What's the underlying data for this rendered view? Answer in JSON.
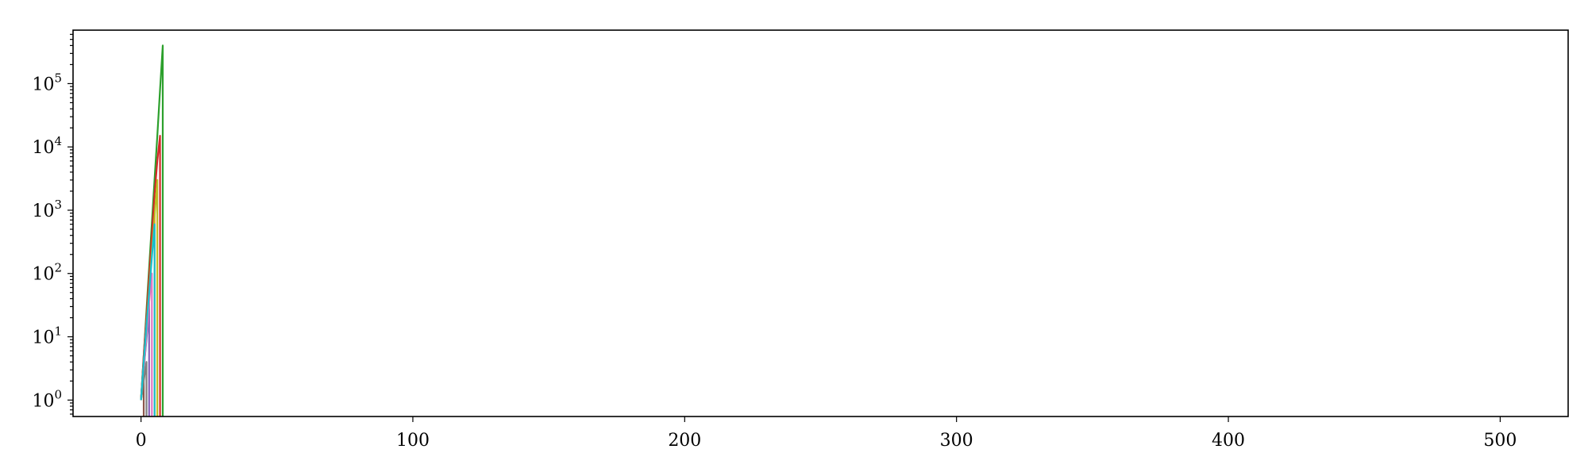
{
  "chart_data": {
    "type": "line",
    "title": "",
    "xlabel": "",
    "ylabel": "",
    "xlim": [
      -25,
      525
    ],
    "ylim": [
      0.55,
      700000
    ],
    "yscale": "log",
    "grid": false,
    "legend": "none",
    "x_ticks": [
      0,
      100,
      200,
      300,
      400,
      500
    ],
    "x_tick_labels": [
      "0",
      "100",
      "200",
      "300",
      "400",
      "500"
    ],
    "y_ticks": [
      1,
      10,
      100,
      1000,
      10000,
      100000
    ],
    "y_tick_labels": [
      {
        "base": "10",
        "exp": "0"
      },
      {
        "base": "10",
        "exp": "1"
      },
      {
        "base": "10",
        "exp": "2"
      },
      {
        "base": "10",
        "exp": "3"
      },
      {
        "base": "10",
        "exp": "4"
      },
      {
        "base": "10",
        "exp": "5"
      }
    ],
    "series": [
      {
        "color": "#1f77b4",
        "x": [
          0,
          1,
          2,
          3
        ],
        "y": [
          1,
          3,
          9,
          27
        ]
      },
      {
        "color": "#ff7f0e",
        "x": [
          0,
          1,
          2,
          3,
          4,
          5
        ],
        "y": [
          1,
          4,
          16,
          64,
          256,
          1000
        ]
      },
      {
        "color": "#2ca02c",
        "x": [
          0,
          1,
          2,
          3,
          4,
          5,
          6,
          7,
          8
        ],
        "y": [
          1,
          5,
          25,
          125,
          625,
          3125,
          15000,
          80000,
          400000
        ]
      },
      {
        "color": "#d62728",
        "x": [
          0,
          1,
          2,
          3,
          4,
          5,
          6,
          7
        ],
        "y": [
          1,
          5,
          20,
          90,
          400,
          1800,
          6000,
          15000
        ]
      },
      {
        "color": "#9467bd",
        "x": [
          0,
          1,
          2,
          3
        ],
        "y": [
          1,
          4,
          15,
          40
        ]
      },
      {
        "color": "#8c564b",
        "x": [
          0,
          1
        ],
        "y": [
          1,
          2
        ]
      },
      {
        "color": "#e377c2",
        "x": [
          0,
          1,
          2,
          3,
          4
        ],
        "y": [
          1,
          3,
          10,
          35,
          100
        ]
      },
      {
        "color": "#7f7f7f",
        "x": [
          0,
          1,
          2
        ],
        "y": [
          1,
          2,
          4
        ]
      },
      {
        "color": "#bcbd22",
        "x": [
          0,
          1,
          2,
          3,
          4,
          5,
          6
        ],
        "y": [
          1,
          4,
          15,
          55,
          220,
          800,
          3000
        ]
      },
      {
        "color": "#17becf",
        "x": [
          0,
          1,
          2,
          3,
          4,
          5
        ],
        "y": [
          1,
          4,
          15,
          50,
          180,
          600
        ]
      }
    ]
  }
}
